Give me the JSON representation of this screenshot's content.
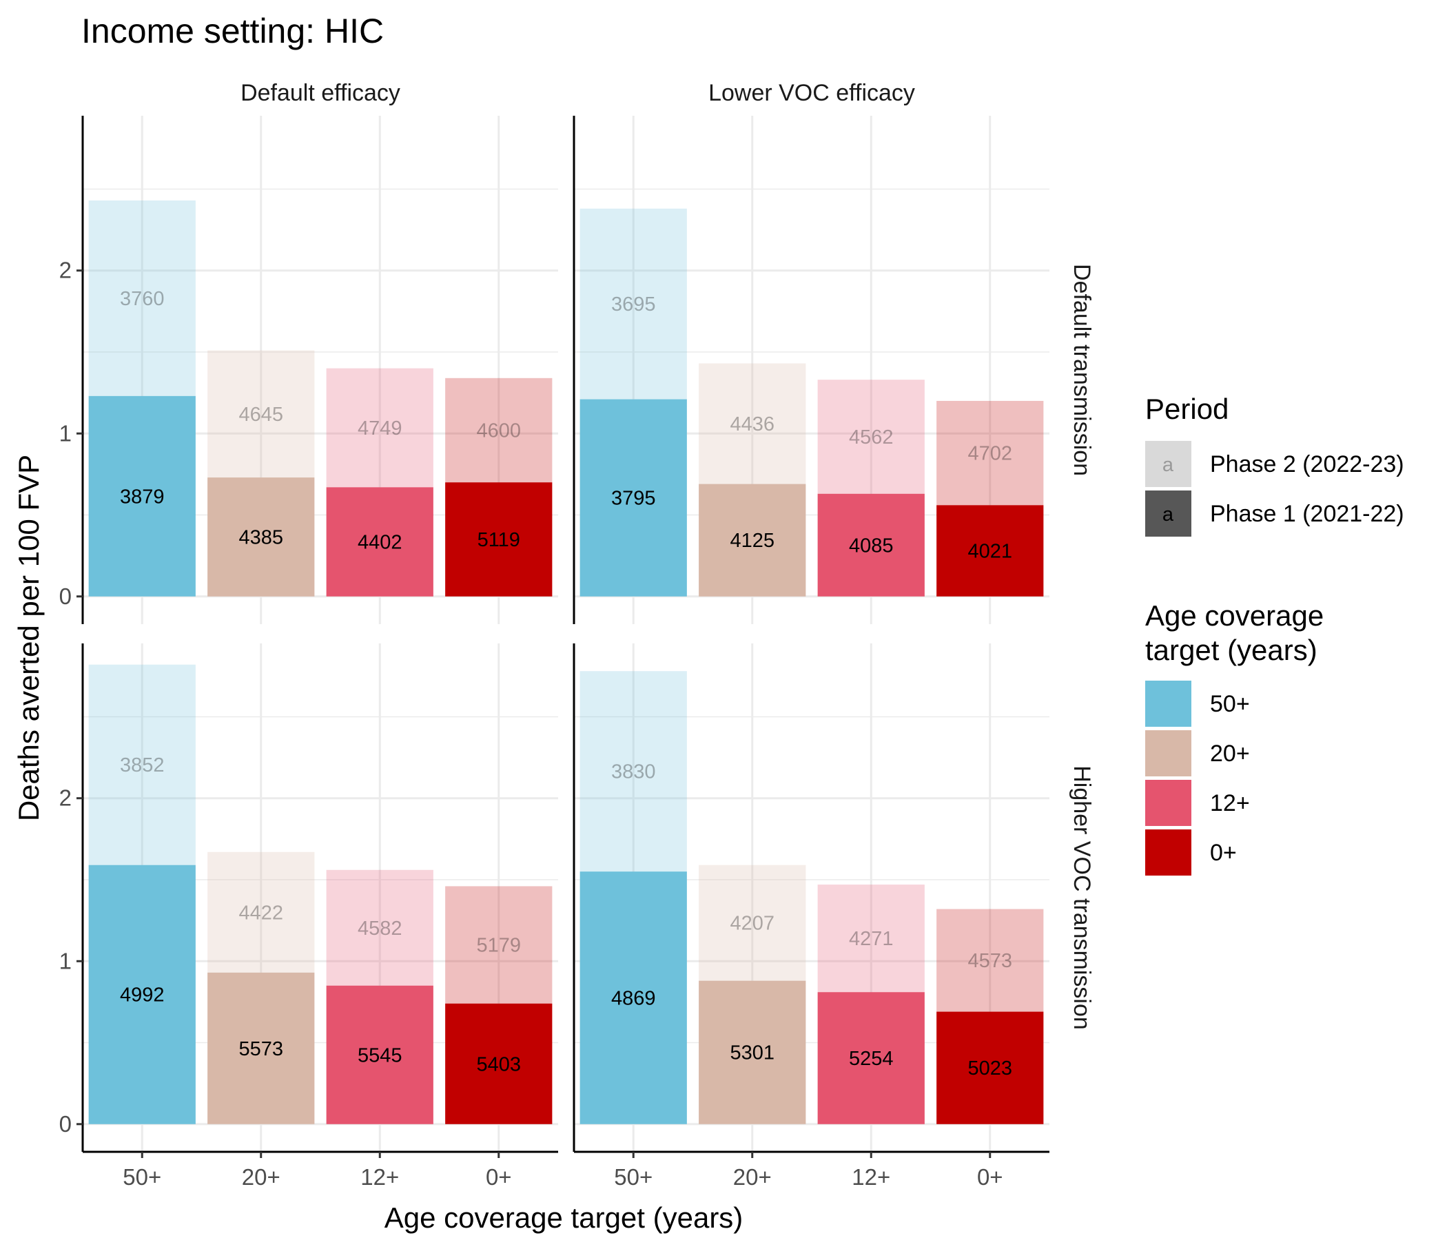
{
  "chart_data": {
    "type": "bar",
    "title": "Income setting: HIC",
    "xlabel": "Age coverage target (years)",
    "ylabel": "Deaths averted per 100 FVP",
    "categories": [
      "50+",
      "20+",
      "12+",
      "0+"
    ],
    "ylim": [
      -0.17,
      2.95
    ],
    "y_ticks": [
      0,
      1,
      2
    ],
    "y_tick_labels": [
      "0",
      "1",
      "2"
    ],
    "grid": true,
    "stacked": true,
    "colors": {
      "50+": "#6EC1DB",
      "20+": "#D8B8A8",
      "12+": "#E5546E",
      "0+": "#C10000"
    },
    "legend_period": {
      "title": "Period",
      "entries": [
        {
          "key": "phase2",
          "label": "Phase 2 (2022-23)",
          "glyph": "a"
        },
        {
          "key": "phase1",
          "label": "Phase 1 (2021-22)",
          "glyph": "a"
        }
      ]
    },
    "legend_age": {
      "title_lines": [
        "Age coverage",
        "target (years)"
      ],
      "entries": [
        "50+",
        "20+",
        "12+",
        "0+"
      ]
    },
    "column_facets": [
      "Default efficacy",
      "Lower VOC efficacy"
    ],
    "row_facets": [
      "Default transmission",
      "Higher VOC transmission"
    ],
    "panels": [
      {
        "column": "Default efficacy",
        "row": "Default transmission",
        "phase1": [
          1.23,
          0.73,
          0.67,
          0.7
        ],
        "total": [
          2.43,
          1.51,
          1.4,
          1.34
        ],
        "phase1_labels": [
          "3879",
          "4385",
          "4402",
          "5119"
        ],
        "phase2_labels": [
          "3760",
          "4645",
          "4749",
          "4600"
        ]
      },
      {
        "column": "Lower VOC efficacy",
        "row": "Default transmission",
        "phase1": [
          1.21,
          0.69,
          0.63,
          0.56
        ],
        "total": [
          2.38,
          1.43,
          1.33,
          1.2
        ],
        "phase1_labels": [
          "3795",
          "4125",
          "4085",
          "4021"
        ],
        "phase2_labels": [
          "3695",
          "4436",
          "4562",
          "4702"
        ]
      },
      {
        "column": "Default efficacy",
        "row": "Higher VOC transmission",
        "phase1": [
          1.59,
          0.93,
          0.85,
          0.74
        ],
        "total": [
          2.82,
          1.67,
          1.56,
          1.46
        ],
        "phase1_labels": [
          "4992",
          "5573",
          "5545",
          "5403"
        ],
        "phase2_labels": [
          "3852",
          "4422",
          "4582",
          "5179"
        ]
      },
      {
        "column": "Lower VOC efficacy",
        "row": "Higher VOC transmission",
        "phase1": [
          1.55,
          0.88,
          0.81,
          0.69
        ],
        "total": [
          2.78,
          1.59,
          1.47,
          1.32
        ],
        "phase1_labels": [
          "4869",
          "5301",
          "5254",
          "5023"
        ],
        "phase2_labels": [
          "3830",
          "4207",
          "4271",
          "4573"
        ]
      }
    ]
  }
}
